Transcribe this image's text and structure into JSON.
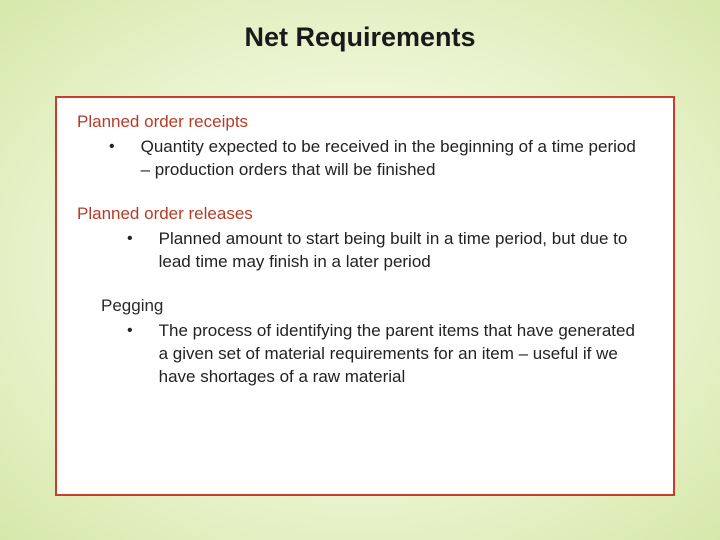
{
  "title": "Net Requirements",
  "box": {
    "border_color": "#d03a2a",
    "background_color": "#ffffff"
  },
  "background_gradient": {
    "inner": "#fdfef2",
    "outer": "#d5e8aa"
  },
  "sections": [
    {
      "heading": "Planned order receipts",
      "heading_color": "#b43c27",
      "heading_indent": false,
      "bullet_indent": false,
      "bullet": "Quantity expected to be received in the beginning of a time period – production orders that will be finished"
    },
    {
      "heading": "Planned order releases",
      "heading_color": "#b43c27",
      "heading_indent": false,
      "bullet_indent": true,
      "bullet": "Planned amount to start being built in a time period, but due to lead time may finish in a later period"
    },
    {
      "heading": "Pegging",
      "heading_color": "#2a2a2a",
      "heading_indent": true,
      "bullet_indent": true,
      "bullet": "The process of identifying the parent items that have generated a given set of material requirements for an item – useful if we have shortages of a raw material"
    }
  ],
  "typography": {
    "title_fontsize": 27,
    "heading_fontsize": 17,
    "body_fontsize": 17,
    "font_family": "Arial"
  }
}
